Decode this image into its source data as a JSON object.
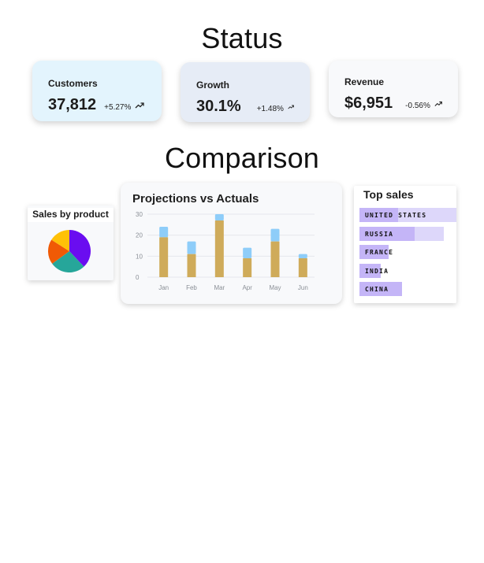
{
  "status": {
    "title": "Status",
    "cards": [
      {
        "label": "Customers",
        "value": "37,812",
        "delta": "+5.27%",
        "trend_icon": "trend-up-icon"
      },
      {
        "label": "Growth",
        "value": "30.1%",
        "delta": "+1.48%",
        "trend_icon": "trend-up-icon"
      },
      {
        "label": "Revenue",
        "value": "$6,951",
        "delta": "-0.56%",
        "trend_icon": "trend-down-icon"
      }
    ]
  },
  "comparison": {
    "title": "Comparison"
  },
  "sales_by_product": {
    "title": "Sales by product",
    "colors": [
      "#6a0df0",
      "#26a69a",
      "#f05a05",
      "#ffc107"
    ]
  },
  "projections": {
    "title": "Projections vs Actuals",
    "colors": {
      "actuals": "#cfab5a",
      "projections": "#8ecdf9"
    }
  },
  "top_sales": {
    "title": "Top sales",
    "items": [
      {
        "name": "UNITED STATES",
        "share": 0.4,
        "track": 1.0
      },
      {
        "name": "RUSSIA",
        "share": 0.57,
        "track": 0.87
      },
      {
        "name": "FRANCE",
        "share": 0.3,
        "track": 0.3
      },
      {
        "name": "INDIA",
        "share": 0.22,
        "track": 0.22
      },
      {
        "name": "CHINA",
        "share": 0.44,
        "track": 0.44
      }
    ]
  },
  "chart_data": [
    {
      "type": "pie",
      "title": "Sales by product",
      "values": [
        38,
        27,
        19,
        16
      ]
    },
    {
      "type": "bar",
      "stacked": true,
      "title": "Projections vs Actuals",
      "categories": [
        "Jan",
        "Feb",
        "Mar",
        "Apr",
        "May",
        "Jun"
      ],
      "series": [
        {
          "values": [
            19,
            11,
            27,
            9,
            17,
            9
          ]
        },
        {
          "values": [
            5,
            6,
            3,
            5,
            6,
            2
          ]
        }
      ],
      "yticks": [
        "0",
        "10",
        "20",
        "30"
      ],
      "ylim": [
        0,
        30
      ],
      "grid": true
    }
  ]
}
